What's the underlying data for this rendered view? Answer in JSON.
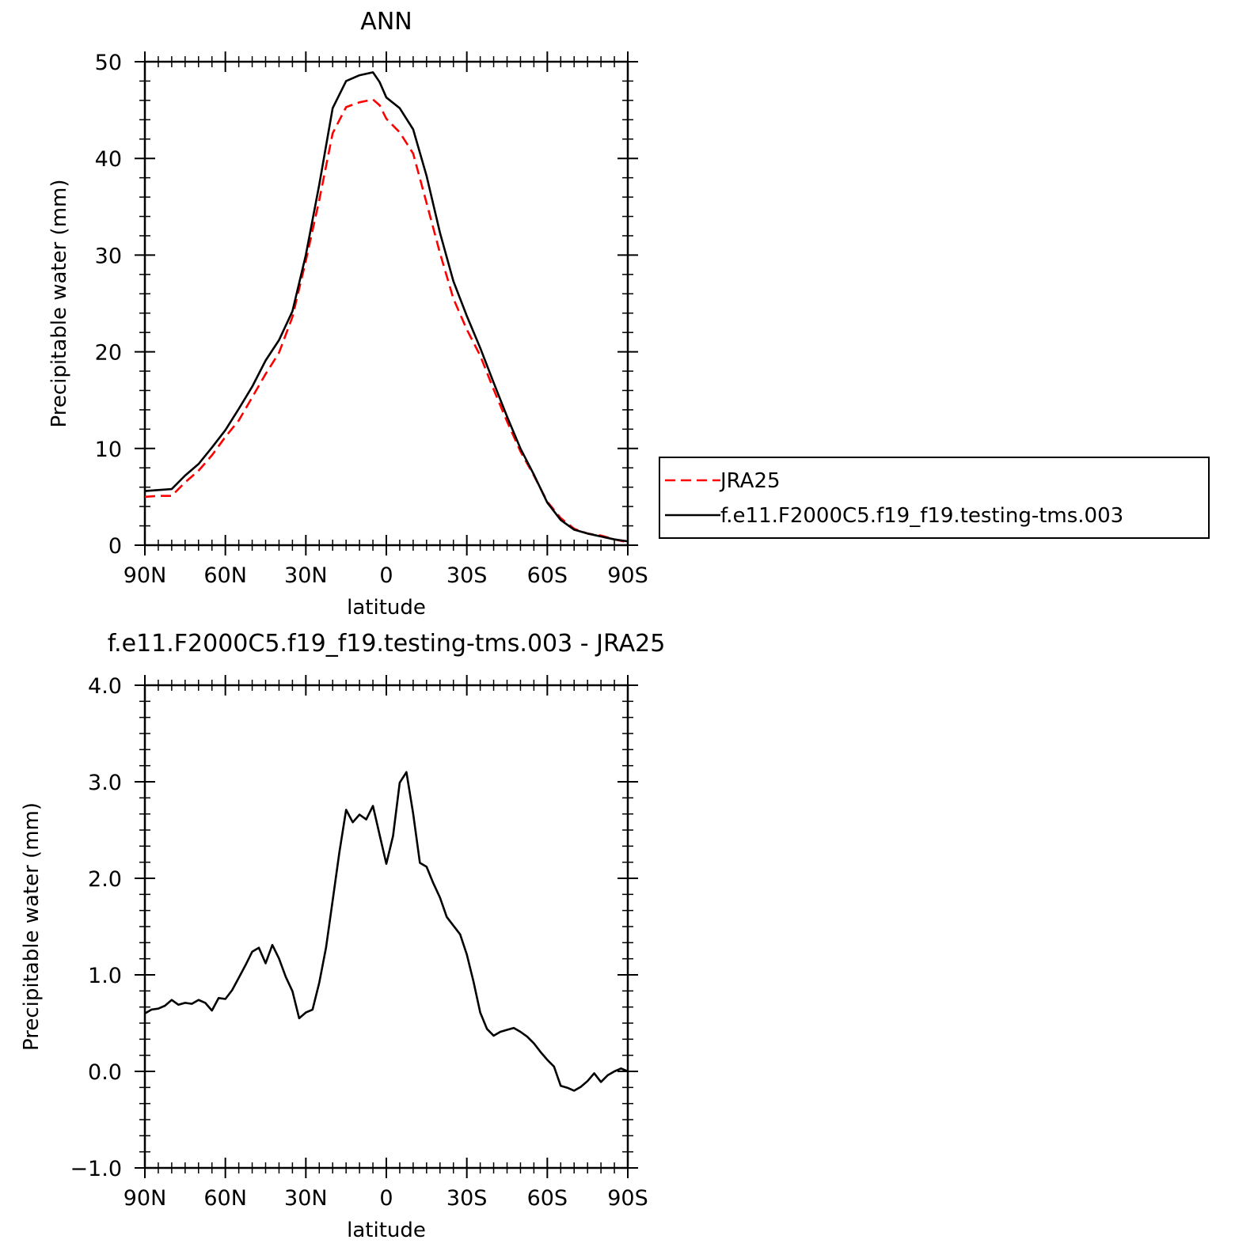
{
  "chart_data": [
    {
      "type": "line",
      "title": "ANN",
      "xlabel": "latitude",
      "ylabel": "Precipitable water (mm)",
      "xlim": [
        90,
        -90
      ],
      "ylim": [
        0,
        50
      ],
      "grid": false,
      "legend_placement": "right",
      "x_ticks": [
        90,
        60,
        30,
        0,
        -30,
        -60,
        -90
      ],
      "x_tick_labels": [
        "90N",
        "60N",
        "30N",
        "0",
        "30S",
        "60S",
        "90S"
      ],
      "y_ticks": [
        0,
        10,
        20,
        30,
        40,
        50
      ],
      "y_tick_labels": [
        "0",
        "10",
        "20",
        "30",
        "40",
        "50"
      ],
      "x": [
        90,
        85,
        80,
        75,
        70,
        65,
        60,
        55,
        50,
        45,
        40,
        35,
        30,
        25,
        20,
        15,
        10,
        5,
        2.5,
        0,
        -5,
        -10,
        -15,
        -20,
        -25,
        -30,
        -35,
        -40,
        -45,
        -50,
        -55,
        -60,
        -65,
        -70,
        -75,
        -80,
        -85,
        -90
      ],
      "series": [
        {
          "name": "JRA25",
          "color": "#ff0000",
          "dash": "dashed",
          "values": [
            5.0,
            5.1,
            5.1,
            6.5,
            7.7,
            9.3,
            11.2,
            12.9,
            15.3,
            17.7,
            19.9,
            23.6,
            29.4,
            35.7,
            42.6,
            45.3,
            45.8,
            46.1,
            45.5,
            44.1,
            42.7,
            40.5,
            35.4,
            30.2,
            25.5,
            22.3,
            19.6,
            16.1,
            12.8,
            9.7,
            7.2,
            4.5,
            2.8,
            1.7,
            1.2,
            1.0,
            0.6,
            0.3
          ]
        },
        {
          "name": "f.e11.F2000C5.f19_f19.testing-tms.003",
          "color": "#000000",
          "dash": "solid",
          "values": [
            5.6,
            5.7,
            5.8,
            7.2,
            8.4,
            10.1,
            11.9,
            14.1,
            16.4,
            19.1,
            21.2,
            24.2,
            30.0,
            37.3,
            45.2,
            48.0,
            48.6,
            48.9,
            47.9,
            46.3,
            45.2,
            43.0,
            38.2,
            32.3,
            27.3,
            23.7,
            20.4,
            16.8,
            13.3,
            10.0,
            7.3,
            4.4,
            2.6,
            1.6,
            1.2,
            0.9,
            0.6,
            0.4
          ]
        }
      ]
    },
    {
      "type": "line",
      "title": "f.e11.F2000C5.f19_f19.testing-tms.003 - JRA25",
      "xlabel": "latitude",
      "ylabel": "Precipitable water (mm)",
      "xlim": [
        90,
        -90
      ],
      "ylim": [
        -1.0,
        4.0
      ],
      "grid": false,
      "x_ticks": [
        90,
        60,
        30,
        0,
        -30,
        -60,
        -90
      ],
      "x_tick_labels": [
        "90N",
        "60N",
        "30N",
        "0",
        "30S",
        "60S",
        "90S"
      ],
      "y_ticks": [
        -1.0,
        0.0,
        1.0,
        2.0,
        3.0,
        4.0
      ],
      "y_tick_labels": [
        "−1.0",
        "0.0",
        "1.0",
        "2.0",
        "3.0",
        "4.0"
      ],
      "x": [
        90,
        87.5,
        85,
        82.5,
        80,
        77.5,
        75,
        72.5,
        70,
        67.5,
        65,
        62.5,
        60,
        57.5,
        55,
        52.5,
        50,
        47.5,
        45,
        42.5,
        40,
        37.5,
        35,
        32.5,
        30,
        27.5,
        25,
        22.5,
        20,
        17.5,
        15,
        12.5,
        10,
        7.5,
        5,
        2.5,
        0,
        -2.5,
        -5,
        -7.5,
        -10,
        -12.5,
        -15,
        -17.5,
        -20,
        -22.5,
        -25,
        -27.5,
        -30,
        -32.5,
        -35,
        -37.5,
        -40,
        -42.5,
        -45,
        -47.5,
        -50,
        -52.5,
        -55,
        -57.5,
        -60,
        -62.5,
        -65,
        -67.5,
        -70,
        -72.5,
        -75,
        -77.5,
        -80,
        -82.5,
        -85,
        -87.5,
        -90
      ],
      "series": [
        {
          "name": "",
          "color": "#000000",
          "dash": "solid",
          "values": [
            0.6,
            0.64,
            0.65,
            0.68,
            0.74,
            0.69,
            0.71,
            0.7,
            0.74,
            0.71,
            0.63,
            0.76,
            0.75,
            0.84,
            0.97,
            1.1,
            1.24,
            1.28,
            1.12,
            1.31,
            1.17,
            0.98,
            0.83,
            0.55,
            0.61,
            0.64,
            0.92,
            1.28,
            1.77,
            2.27,
            2.71,
            2.58,
            2.66,
            2.61,
            2.75,
            2.45,
            2.15,
            2.44,
            2.99,
            3.1,
            2.67,
            2.16,
            2.12,
            1.95,
            1.8,
            1.6,
            1.51,
            1.42,
            1.21,
            0.93,
            0.61,
            0.44,
            0.37,
            0.41,
            0.43,
            0.45,
            0.41,
            0.36,
            0.29,
            0.2,
            0.12,
            0.05,
            -0.15,
            -0.17,
            -0.2,
            -0.16,
            -0.1,
            -0.02,
            -0.11,
            -0.04,
            0.0,
            0.03,
            0.0
          ]
        }
      ]
    }
  ]
}
